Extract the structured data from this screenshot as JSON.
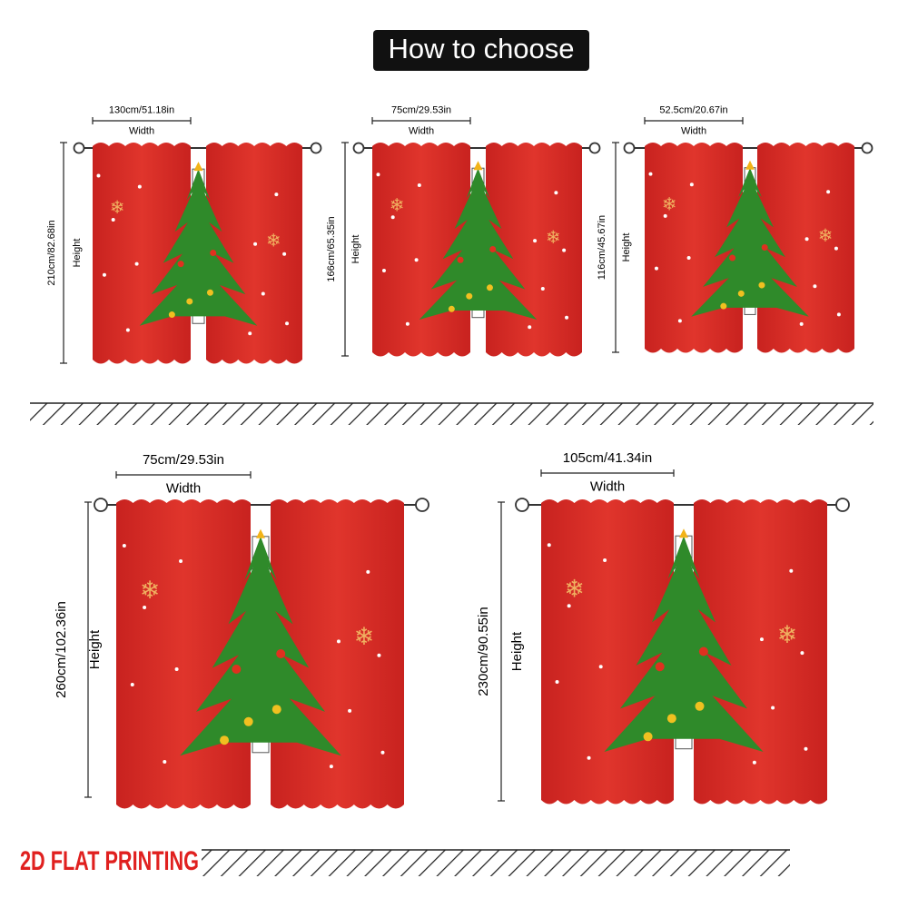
{
  "header": {
    "title": "How to choose"
  },
  "panels": [
    {
      "width_label": "130cm/51.18in",
      "width_word": "Width",
      "height_label": "210cm/82.68in",
      "height_word": "Height"
    },
    {
      "width_label": "75cm/29.53in",
      "width_word": "Width",
      "height_label": "166cm/65.35in",
      "height_word": "Height"
    },
    {
      "width_label": "52.5cm/20.67in",
      "width_word": "Width",
      "height_label": "116cm/45.67in",
      "height_word": "Height"
    },
    {
      "width_label": "75cm/29.53in",
      "width_word": "Width",
      "height_label": "260cm/102.36in",
      "height_word": "Height"
    },
    {
      "width_label": "105cm/41.34in",
      "width_word": "Width",
      "height_label": "230cm/90.55in",
      "height_word": "Height"
    }
  ],
  "footer": {
    "text": "2D FLAT PRINTING"
  }
}
